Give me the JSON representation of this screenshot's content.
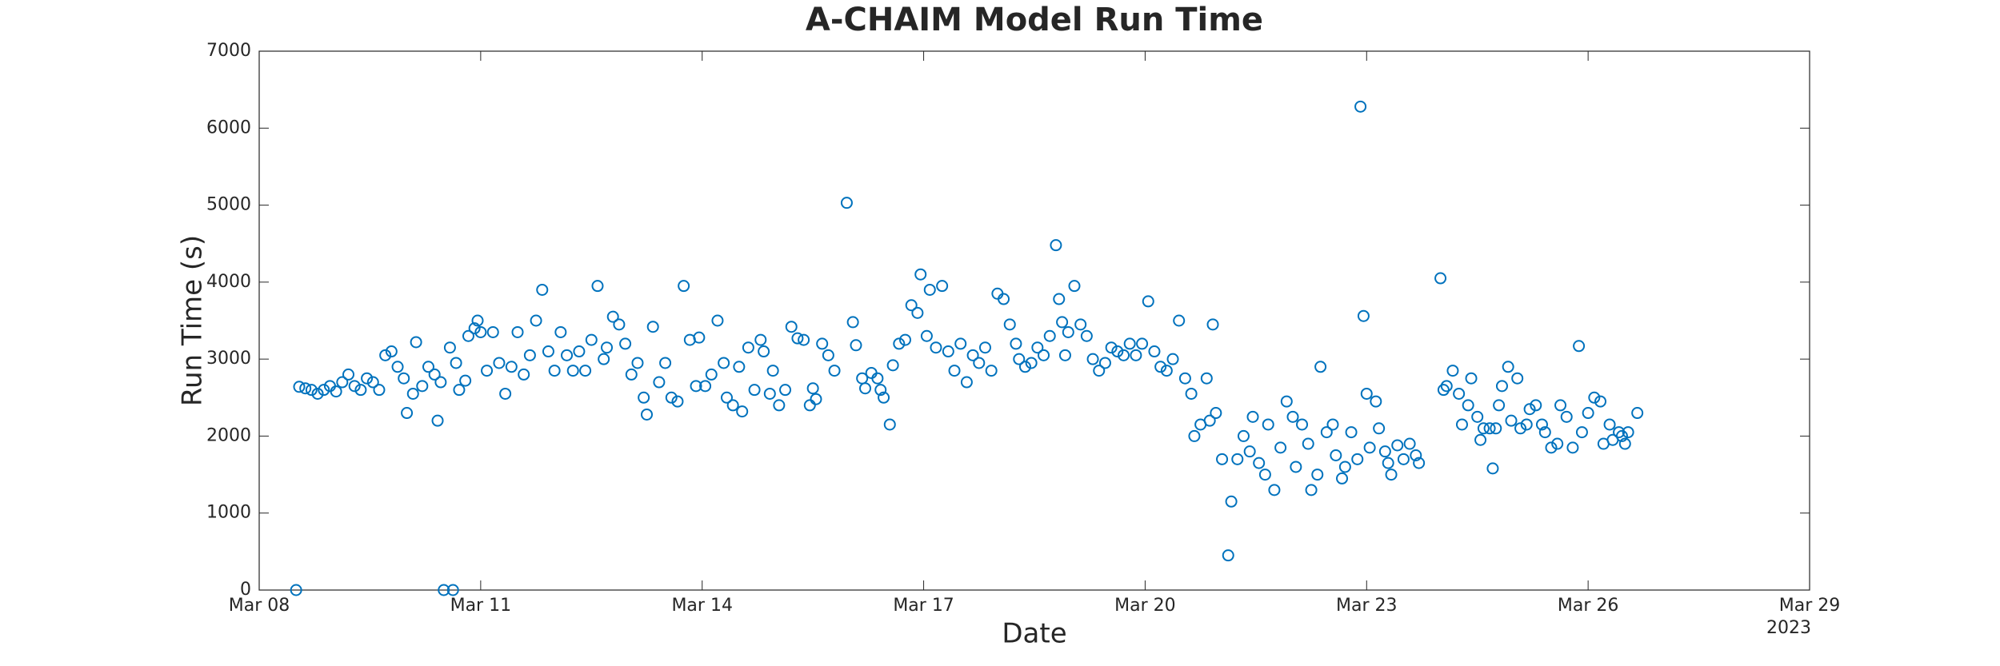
{
  "chart_data": {
    "type": "scatter",
    "title": "A-CHAIM Model Run Time",
    "xlabel": "Date",
    "ylabel": "Run Time (s)",
    "year_label": "2023",
    "color": "#0072bd",
    "xlim": [
      "2023-03-08T00:00",
      "2023-03-29T00:00"
    ],
    "xticks": [
      {
        "value": "2023-03-08T00:00",
        "label": "Mar 08"
      },
      {
        "value": "2023-03-11T00:00",
        "label": "Mar 11"
      },
      {
        "value": "2023-03-14T00:00",
        "label": "Mar 14"
      },
      {
        "value": "2023-03-17T00:00",
        "label": "Mar 17"
      },
      {
        "value": "2023-03-20T00:00",
        "label": "Mar 20"
      },
      {
        "value": "2023-03-23T00:00",
        "label": "Mar 23"
      },
      {
        "value": "2023-03-26T00:00",
        "label": "Mar 26"
      },
      {
        "value": "2023-03-29T00:00",
        "label": "Mar 29"
      }
    ],
    "ylim": [
      0,
      7000
    ],
    "yticks": [
      0,
      1000,
      2000,
      3000,
      4000,
      5000,
      6000,
      7000
    ],
    "x": [
      "2023-03-08T12:00",
      "2023-03-08T13:00",
      "2023-03-08T15:00",
      "2023-03-08T17:00",
      "2023-03-08T19:00",
      "2023-03-08T21:00",
      "2023-03-08T23:00",
      "2023-03-09T01:00",
      "2023-03-09T03:00",
      "2023-03-09T05:00",
      "2023-03-09T07:00",
      "2023-03-09T09:00",
      "2023-03-09T11:00",
      "2023-03-09T13:00",
      "2023-03-09T15:00",
      "2023-03-09T17:00",
      "2023-03-09T19:00",
      "2023-03-09T21:00",
      "2023-03-09T23:00",
      "2023-03-10T00:00",
      "2023-03-10T02:00",
      "2023-03-10T03:00",
      "2023-03-10T05:00",
      "2023-03-10T07:00",
      "2023-03-10T09:00",
      "2023-03-10T10:00",
      "2023-03-10T11:00",
      "2023-03-10T12:00",
      "2023-03-10T14:00",
      "2023-03-10T15:00",
      "2023-03-10T16:00",
      "2023-03-10T17:00",
      "2023-03-10T19:00",
      "2023-03-10T20:00",
      "2023-03-10T22:00",
      "2023-03-10T23:00",
      "2023-03-11T00:00",
      "2023-03-11T02:00",
      "2023-03-11T04:00",
      "2023-03-11T06:00",
      "2023-03-11T08:00",
      "2023-03-11T10:00",
      "2023-03-11T12:00",
      "2023-03-11T14:00",
      "2023-03-11T16:00",
      "2023-03-11T18:00",
      "2023-03-11T20:00",
      "2023-03-11T22:00",
      "2023-03-12T00:00",
      "2023-03-12T02:00",
      "2023-03-12T04:00",
      "2023-03-12T06:00",
      "2023-03-12T08:00",
      "2023-03-12T10:00",
      "2023-03-12T12:00",
      "2023-03-12T14:00",
      "2023-03-12T16:00",
      "2023-03-12T17:00",
      "2023-03-12T19:00",
      "2023-03-12T21:00",
      "2023-03-12T23:00",
      "2023-03-13T01:00",
      "2023-03-13T03:00",
      "2023-03-13T05:00",
      "2023-03-13T06:00",
      "2023-03-13T08:00",
      "2023-03-13T10:00",
      "2023-03-13T12:00",
      "2023-03-13T14:00",
      "2023-03-13T16:00",
      "2023-03-13T18:00",
      "2023-03-13T20:00",
      "2023-03-13T22:00",
      "2023-03-13T23:00",
      "2023-03-14T01:00",
      "2023-03-14T03:00",
      "2023-03-14T05:00",
      "2023-03-14T07:00",
      "2023-03-14T08:00",
      "2023-03-14T10:00",
      "2023-03-14T12:00",
      "2023-03-14T13:00",
      "2023-03-14T15:00",
      "2023-03-14T17:00",
      "2023-03-14T19:00",
      "2023-03-14T20:00",
      "2023-03-14T22:00",
      "2023-03-14T23:00",
      "2023-03-15T01:00",
      "2023-03-15T03:00",
      "2023-03-15T05:00",
      "2023-03-15T07:00",
      "2023-03-15T09:00",
      "2023-03-15T11:00",
      "2023-03-15T12:00",
      "2023-03-15T13:00",
      "2023-03-15T15:00",
      "2023-03-15T17:00",
      "2023-03-15T19:00",
      "2023-03-15T23:00",
      "2023-03-16T01:00",
      "2023-03-16T02:00",
      "2023-03-16T04:00",
      "2023-03-16T05:00",
      "2023-03-16T07:00",
      "2023-03-16T09:00",
      "2023-03-16T10:00",
      "2023-03-16T11:00",
      "2023-03-16T13:00",
      "2023-03-16T14:00",
      "2023-03-16T16:00",
      "2023-03-16T18:00",
      "2023-03-16T20:00",
      "2023-03-16T22:00",
      "2023-03-16T23:00",
      "2023-03-17T01:00",
      "2023-03-17T02:00",
      "2023-03-17T04:00",
      "2023-03-17T06:00",
      "2023-03-17T08:00",
      "2023-03-17T10:00",
      "2023-03-17T12:00",
      "2023-03-17T14:00",
      "2023-03-17T16:00",
      "2023-03-17T18:00",
      "2023-03-17T20:00",
      "2023-03-17T22:00",
      "2023-03-18T00:00",
      "2023-03-18T02:00",
      "2023-03-18T04:00",
      "2023-03-18T06:00",
      "2023-03-18T07:00",
      "2023-03-18T09:00",
      "2023-03-18T11:00",
      "2023-03-18T13:00",
      "2023-03-18T15:00",
      "2023-03-18T17:00",
      "2023-03-18T19:00",
      "2023-03-18T20:00",
      "2023-03-18T21:00",
      "2023-03-18T22:00",
      "2023-03-18T23:00",
      "2023-03-19T01:00",
      "2023-03-19T03:00",
      "2023-03-19T05:00",
      "2023-03-19T07:00",
      "2023-03-19T09:00",
      "2023-03-19T11:00",
      "2023-03-19T13:00",
      "2023-03-19T15:00",
      "2023-03-19T17:00",
      "2023-03-19T19:00",
      "2023-03-19T21:00",
      "2023-03-19T23:00",
      "2023-03-20T01:00",
      "2023-03-20T03:00",
      "2023-03-20T05:00",
      "2023-03-20T07:00",
      "2023-03-20T09:00",
      "2023-03-20T11:00",
      "2023-03-20T13:00",
      "2023-03-20T15:00",
      "2023-03-20T16:00",
      "2023-03-20T18:00",
      "2023-03-20T20:00",
      "2023-03-20T21:00",
      "2023-03-20T22:00",
      "2023-03-20T23:00",
      "2023-03-21T01:00",
      "2023-03-21T03:00",
      "2023-03-21T04:00",
      "2023-03-21T06:00",
      "2023-03-21T08:00",
      "2023-03-21T10:00",
      "2023-03-21T11:00",
      "2023-03-21T13:00",
      "2023-03-21T15:00",
      "2023-03-21T16:00",
      "2023-03-21T18:00",
      "2023-03-21T20:00",
      "2023-03-21T22:00",
      "2023-03-22T00:00",
      "2023-03-22T01:00",
      "2023-03-22T03:00",
      "2023-03-22T05:00",
      "2023-03-22T06:00",
      "2023-03-22T08:00",
      "2023-03-22T09:00",
      "2023-03-22T11:00",
      "2023-03-22T13:00",
      "2023-03-22T14:00",
      "2023-03-22T16:00",
      "2023-03-22T17:00",
      "2023-03-22T19:00",
      "2023-03-22T21:00",
      "2023-03-22T22:00",
      "2023-03-22T23:00",
      "2023-03-23T00:00",
      "2023-03-23T01:00",
      "2023-03-23T03:00",
      "2023-03-23T04:00",
      "2023-03-23T06:00",
      "2023-03-23T07:00",
      "2023-03-23T08:00",
      "2023-03-23T10:00",
      "2023-03-23T12:00",
      "2023-03-23T14:00",
      "2023-03-23T16:00",
      "2023-03-23T17:00",
      "2023-03-24T00:00",
      "2023-03-24T01:00",
      "2023-03-24T02:00",
      "2023-03-24T04:00",
      "2023-03-24T06:00",
      "2023-03-24T07:00",
      "2023-03-24T09:00",
      "2023-03-24T10:00",
      "2023-03-24T12:00",
      "2023-03-24T13:00",
      "2023-03-24T14:00",
      "2023-03-24T16:00",
      "2023-03-24T17:00",
      "2023-03-24T18:00",
      "2023-03-24T19:00",
      "2023-03-24T20:00",
      "2023-03-24T22:00",
      "2023-03-24T23:00",
      "2023-03-25T01:00",
      "2023-03-25T02:00",
      "2023-03-25T04:00",
      "2023-03-25T05:00",
      "2023-03-25T07:00",
      "2023-03-25T09:00",
      "2023-03-25T10:00",
      "2023-03-25T12:00",
      "2023-03-25T14:00",
      "2023-03-25T15:00",
      "2023-03-25T17:00",
      "2023-03-25T19:00",
      "2023-03-25T21:00",
      "2023-03-25T22:00",
      "2023-03-26T00:00",
      "2023-03-26T02:00",
      "2023-03-26T04:00",
      "2023-03-26T05:00",
      "2023-03-26T07:00",
      "2023-03-26T08:00",
      "2023-03-26T10:00",
      "2023-03-26T11:00",
      "2023-03-26T12:00",
      "2023-03-26T13:00",
      "2023-03-26T16:00"
    ],
    "values": [
      0,
      2640,
      2620,
      2600,
      2550,
      2600,
      2650,
      2580,
      2700,
      2800,
      2650,
      2600,
      2750,
      2700,
      2600,
      3050,
      3100,
      2900,
      2750,
      2300,
      2550,
      3220,
      2650,
      2900,
      2800,
      2200,
      2700,
      0,
      3150,
      0,
      2950,
      2600,
      2720,
      3300,
      3400,
      3500,
      3350,
      2850,
      3350,
      2950,
      2550,
      2900,
      3350,
      2800,
      3050,
      3500,
      3900,
      3100,
      2850,
      3350,
      3050,
      2850,
      3100,
      2850,
      3250,
      3950,
      3000,
      3150,
      3550,
      3450,
      3200,
      2800,
      2950,
      2500,
      2280,
      3420,
      2700,
      2950,
      2500,
      2450,
      3950,
      3250,
      2650,
      3280,
      2650,
      2800,
      3500,
      2950,
      2500,
      2400,
      2900,
      2320,
      3150,
      2600,
      3250,
      3100,
      2550,
      2850,
      2400,
      2600,
      3420,
      3270,
      3250,
      2400,
      2620,
      2480,
      3200,
      3050,
      2850,
      5030,
      3480,
      3180,
      2750,
      2620,
      2820,
      2750,
      2600,
      2500,
      2150,
      2920,
      3200,
      3250,
      3700,
      3600,
      4100,
      3300,
      3900,
      3150,
      3950,
      3100,
      2850,
      3200,
      2700,
      3050,
      2950,
      3150,
      2850,
      3850,
      3780,
      3450,
      3200,
      3000,
      2900,
      2950,
      3150,
      3050,
      3300,
      4480,
      3780,
      3480,
      3050,
      3350,
      3950,
      3450,
      3300,
      3000,
      2850,
      2950,
      3150,
      3100,
      3050,
      3200,
      3050,
      3200,
      3750,
      3100,
      2900,
      2850,
      3000,
      3500,
      2750,
      2550,
      2000,
      2150,
      2750,
      2200,
      3450,
      2300,
      1700,
      450,
      1150,
      1700,
      2000,
      1800,
      2250,
      1650,
      1500,
      2150,
      1300,
      1850,
      2450,
      2250,
      1600,
      2150,
      1900,
      1300,
      1500,
      2900,
      2050,
      2150,
      1750,
      1450,
      1600,
      2050,
      1700,
      6280,
      3560,
      2550,
      1850,
      2450,
      2100,
      1800,
      1650,
      1500,
      1880,
      1700,
      1900,
      1750,
      1650,
      4050,
      2600,
      2650,
      2850,
      2550,
      2150,
      2400,
      2750,
      2250,
      1950,
      2100,
      2100,
      1580,
      2100,
      2400,
      2650,
      2900,
      2200,
      2750,
      2100,
      2150,
      2350,
      2400,
      2150,
      2050,
      1850,
      1900,
      2400,
      2250,
      1850,
      3170,
      2050,
      2300,
      2500,
      2450,
      1900,
      2150,
      1950,
      2050,
      2000,
      1900,
      2050,
      2300
    ]
  }
}
